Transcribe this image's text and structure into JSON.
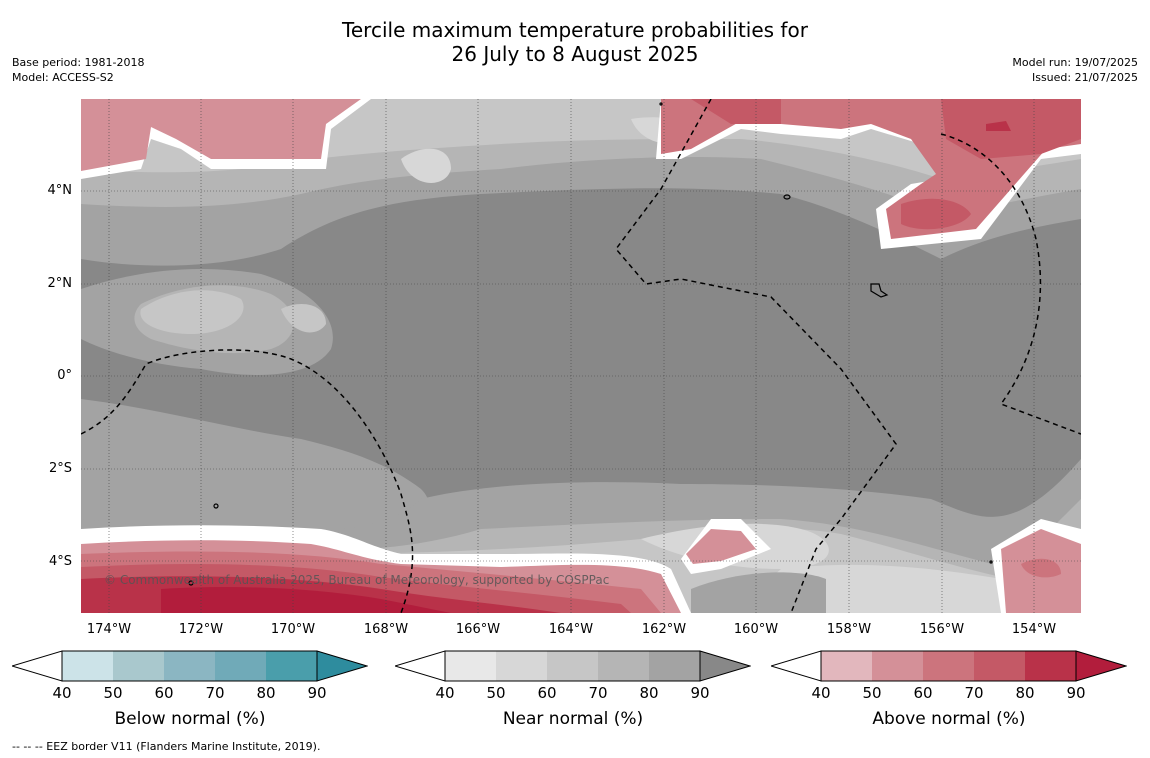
{
  "header": {
    "title_line1": "Tercile maximum temperature probabilities for",
    "title_line2": "26 July to 8 August 2025",
    "base_period": "Base period: 1981-2018",
    "model": "Model: ACCESS-S2",
    "model_run": "Model run: 19/07/2025",
    "issued": "Issued: 21/07/2025"
  },
  "map": {
    "lat_labels": [
      "4°N",
      "2°N",
      "0°",
      "2°S",
      "4°S"
    ],
    "lon_labels": [
      "174°W",
      "172°W",
      "170°W",
      "168°W",
      "166°W",
      "164°W",
      "162°W",
      "160°W",
      "158°W",
      "156°W",
      "154°W"
    ],
    "copyright": "© Commonwealth of Australia 2025, Bureau of Meteorology, supported by COSPPac",
    "colors": {
      "near_40": "#e8e8e8",
      "near_50": "#d7d7d7",
      "near_60": "#c6c6c6",
      "near_70": "#b5b5b5",
      "near_80": "#a3a3a3",
      "near_90": "#888888",
      "above_40": "#e2b7bd",
      "above_50": "#d49098",
      "above_60": "#cc747d",
      "above_70": "#c45966",
      "above_80": "#b93249",
      "above_90": "#b21d3c"
    }
  },
  "legends": [
    {
      "title": "Below normal (%)",
      "ticks": [
        "40",
        "50",
        "60",
        "70",
        "80",
        "90"
      ],
      "colors": [
        "#cce3e8",
        "#a9c8cd",
        "#8bb6c2",
        "#70aab8",
        "#4a9eab",
        "#2e8c9e"
      ]
    },
    {
      "title": "Near normal (%)",
      "ticks": [
        "40",
        "50",
        "60",
        "70",
        "80",
        "90"
      ],
      "colors": [
        "#e8e8e8",
        "#d7d7d7",
        "#c6c6c6",
        "#b5b5b5",
        "#a3a3a3",
        "#888888"
      ]
    },
    {
      "title": "Above normal (%)",
      "ticks": [
        "40",
        "50",
        "60",
        "70",
        "80",
        "90"
      ],
      "colors": [
        "#e2b7bd",
        "#d49098",
        "#cc747d",
        "#c45966",
        "#b93249",
        "#b21d3c"
      ]
    }
  ],
  "footnote": "-- -- -- EEZ border V11 (Flanders Marine Institute, 2019)."
}
